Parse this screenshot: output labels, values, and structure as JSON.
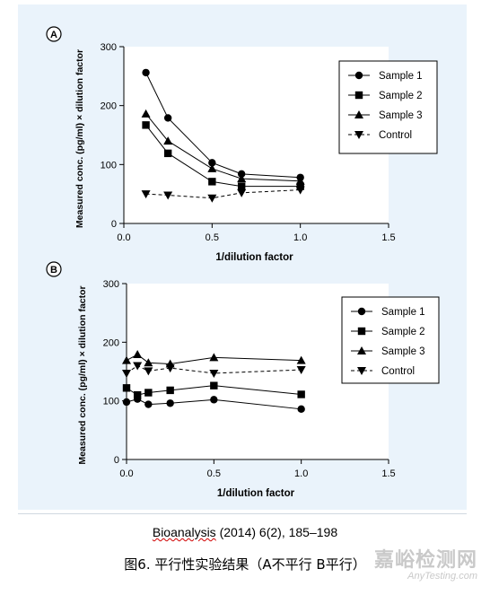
{
  "chart_data": [
    {
      "panel_label": "A",
      "type": "line",
      "xlabel": "1/dilution factor",
      "ylabel": "Measured conc. (pg/ml) × dilution factor",
      "xlim": [
        0,
        1.5
      ],
      "ylim": [
        0,
        300
      ],
      "xticks": [
        "0.0",
        "0.5",
        "1.0",
        "1.5"
      ],
      "yticks": [
        "0",
        "100",
        "200",
        "300"
      ],
      "legend_position": "top-right",
      "series": [
        {
          "name": "Sample 1",
          "marker": "circle",
          "line": "solid",
          "x": [
            0.125,
            0.25,
            0.5,
            0.667,
            1.0
          ],
          "y": [
            256,
            179,
            103,
            84,
            78
          ]
        },
        {
          "name": "Sample 2",
          "marker": "square",
          "line": "solid",
          "x": [
            0.125,
            0.25,
            0.5,
            0.667,
            1.0
          ],
          "y": [
            167,
            119,
            71,
            63,
            63
          ]
        },
        {
          "name": "Sample 3",
          "marker": "triangle-up",
          "line": "solid",
          "x": [
            0.125,
            0.25,
            0.5,
            0.667,
            1.0
          ],
          "y": [
            186,
            140,
            93,
            76,
            72
          ]
        },
        {
          "name": "Control",
          "marker": "triangle-down",
          "line": "dashed",
          "x": [
            0.125,
            0.25,
            0.5,
            0.667,
            1.0
          ],
          "y": [
            50,
            48,
            43,
            52,
            57
          ]
        }
      ]
    },
    {
      "panel_label": "B",
      "type": "line",
      "xlabel": "1/dilution factor",
      "ylabel": "Measured conc. (pg/ml) × dilution factor",
      "xlim": [
        0,
        1.5
      ],
      "ylim": [
        0,
        300
      ],
      "xticks": [
        "0.0",
        "0.5",
        "1.0",
        "1.5"
      ],
      "yticks": [
        "0",
        "100",
        "200",
        "300"
      ],
      "legend_position": "top-right",
      "series": [
        {
          "name": "Sample 1",
          "marker": "circle",
          "line": "solid",
          "x": [
            0.0,
            0.0625,
            0.125,
            0.25,
            0.5,
            1.0
          ],
          "y": [
            98,
            103,
            94,
            96,
            102,
            86
          ]
        },
        {
          "name": "Sample 2",
          "marker": "square",
          "line": "solid",
          "x": [
            0.0,
            0.0625,
            0.125,
            0.25,
            0.5,
            1.0
          ],
          "y": [
            122,
            110,
            114,
            118,
            126,
            111
          ]
        },
        {
          "name": "Sample 3",
          "marker": "triangle-up",
          "line": "solid",
          "x": [
            0.0,
            0.0625,
            0.125,
            0.25,
            0.5,
            1.0
          ],
          "y": [
            169,
            179,
            165,
            163,
            174,
            169
          ]
        },
        {
          "name": "Control",
          "marker": "triangle-down",
          "line": "dashed",
          "x": [
            0.0,
            0.0625,
            0.125,
            0.25,
            0.5,
            1.0
          ],
          "y": [
            147,
            160,
            151,
            156,
            147,
            153
          ]
        }
      ]
    }
  ],
  "caption": {
    "citation_journal": "Bioanalysis",
    "citation_rest": " (2014) 6(2), 185–198",
    "figure_title": "图6. 平行性实验结果（A不平行  B平行）"
  },
  "watermark": {
    "text_cn": "嘉峪检测网",
    "text_en": "AnyTesting.com"
  },
  "colors": {
    "panel_background": "#eaf3fb",
    "plot_background": "#ffffff",
    "ink": "#000000",
    "watermark": "#c9c9c9"
  }
}
